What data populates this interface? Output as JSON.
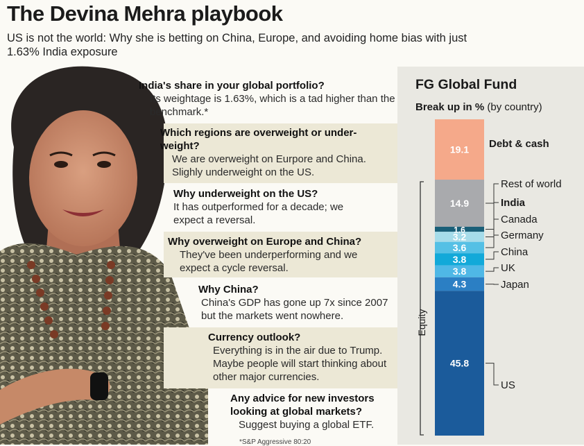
{
  "headline": "The Devina Mehra playbook",
  "subhead": "US is not the world: Why she is betting on China, Europe, and avoiding home bias with just 1.63% India exposure",
  "qa": [
    {
      "q": "India's share in your global portfolio?",
      "a": "Its weightage is 1.63%, which is a tad higher than the benchmark.*"
    },
    {
      "q": "Which regions are overweight or under-weight?",
      "a": "We are overweight on Eurpore and China. Slighly underweight on the US."
    },
    {
      "q": "Why underweight on the US?",
      "a": "It has outperformed for a decade; we expect a reversal."
    },
    {
      "q": "Why overweight on Europe and China?",
      "a": "They've been underperforming and we expect a cycle reversal."
    },
    {
      "q": "Why China?",
      "a": "China's GDP has gone up 7x since 2007 but the markets went nowhere."
    },
    {
      "q": "Currency outlook?",
      "a": "Everything is in the air due to Trump. Maybe people will start thinking about other major currencies."
    },
    {
      "q": "Any advice for new investors looking at global markets?",
      "a": "Suggest buying a global ETF."
    }
  ],
  "footnote": "*S&P Aggressive 80:20",
  "fund": {
    "title": "FG Global Fund",
    "subtitle_bold": "Break up in %",
    "subtitle_rest": " (by country)",
    "equity_label": "Equity"
  },
  "chart_data": {
    "type": "bar",
    "stacked": true,
    "title": "FG Global Fund",
    "unit": "%",
    "series": [
      {
        "name": "Debt & cash",
        "value": 19.1,
        "color": "#f5a98a"
      },
      {
        "name": "Rest of world",
        "value": 14.9,
        "color": "#a9aaad"
      },
      {
        "name": "India",
        "value": 1.6,
        "color": "#1a5f78"
      },
      {
        "name": "Canada",
        "value": 3.2,
        "color": "#a6dcea"
      },
      {
        "name": "Germany",
        "value": 3.6,
        "color": "#55c0e5"
      },
      {
        "name": "China",
        "value": 3.8,
        "color": "#12a9d9"
      },
      {
        "name": "UK",
        "value": 3.8,
        "color": "#4fb8e6"
      },
      {
        "name": "Japan",
        "value": 4.3,
        "color": "#2b7fc4"
      },
      {
        "name": "US",
        "value": 45.8,
        "color": "#1b5b9b"
      }
    ]
  }
}
